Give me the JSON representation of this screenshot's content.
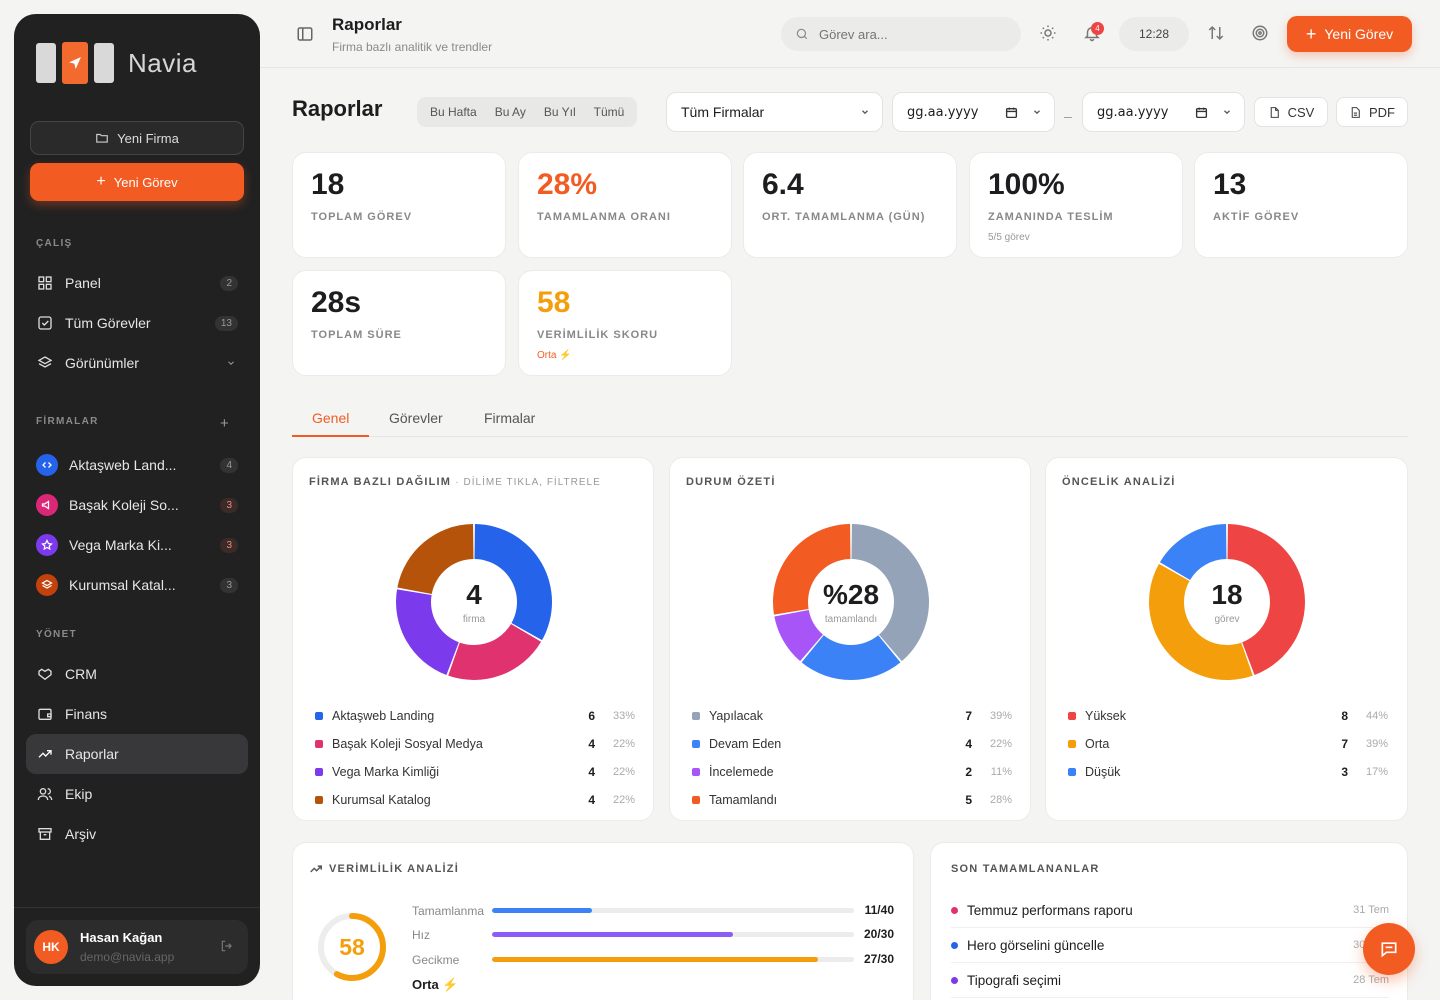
{
  "sidebar": {
    "brand": "Navia",
    "new_firm": "Yeni Firma",
    "new_task": "Yeni Görev",
    "section_work": "ÇALIŞ",
    "section_firms": "FİRMALAR",
    "section_manage": "YÖNET",
    "nav": [
      {
        "label": "Panel",
        "count": "2",
        "icon": "grid-icon"
      },
      {
        "label": "Tüm Görevler",
        "count": "13",
        "icon": "check-square-icon"
      },
      {
        "label": "Görünümler",
        "icon": "layers-icon"
      }
    ],
    "firms": [
      {
        "label": "Aktaşweb Land...",
        "count": "4",
        "color": "#2563eb",
        "icon": "code-icon"
      },
      {
        "label": "Başak Koleji So...",
        "count": "3",
        "color": "#db2777",
        "icon": "megaphone-icon"
      },
      {
        "label": "Vega Marka Ki...",
        "count": "3",
        "color": "#7c3aed",
        "icon": "star-icon"
      },
      {
        "label": "Kurumsal Katal...",
        "count": "3",
        "color": "#c2410c",
        "icon": "layers-icon"
      }
    ],
    "manage": [
      {
        "label": "CRM",
        "icon": "handshake-icon"
      },
      {
        "label": "Finans",
        "icon": "wallet-icon"
      },
      {
        "label": "Raporlar",
        "icon": "trending-up-icon",
        "active": true
      },
      {
        "label": "Ekip",
        "icon": "users-icon"
      },
      {
        "label": "Arşiv",
        "icon": "archive-icon"
      }
    ],
    "user": {
      "initials": "HK",
      "name": "Hasan Kağan",
      "email": "demo@navia.app"
    }
  },
  "topbar": {
    "title": "Raporlar",
    "subtitle": "Firma bazlı analitik ve trendler",
    "search_placeholder": "Görev ara...",
    "notifications": "4",
    "time": "12:28",
    "new_task": "Yeni Görev"
  },
  "filters": {
    "page_title": "Raporlar",
    "periods": [
      "Bu Hafta",
      "Bu Ay",
      "Bu Yıl",
      "Tümü"
    ],
    "firm_select": "Tüm Firmalar",
    "date_from": "gg.aa.yyyy",
    "date_to": "gg.aa.yyyy",
    "csv": "CSV",
    "pdf": "PDF"
  },
  "stats": [
    {
      "value": "18",
      "label": "TOPLAM GÖREV",
      "color": "#1d1d1f"
    },
    {
      "value": "28%",
      "label": "TAMAMLANMA ORANI",
      "color": "#f25c22"
    },
    {
      "value": "6.4",
      "label": "ORT. TAMAMLANMA (GÜN)",
      "color": "#1d1d1f"
    },
    {
      "value": "100%",
      "label": "ZAMANINDA TESLİM",
      "sub": "5/5 görev",
      "color": "#1d1d1f"
    },
    {
      "value": "13",
      "label": "AKTİF GÖREV",
      "color": "#1d1d1f"
    },
    {
      "value": "28s",
      "label": "TOPLAM SÜRE",
      "color": "#1d1d1f"
    },
    {
      "value": "58",
      "label": "VERİMLİLİK SKORU",
      "sub": "Orta ⚡",
      "color": "#f59e0b"
    }
  ],
  "tabs": [
    "Genel",
    "Görevler",
    "Firmalar"
  ],
  "firm_chart": {
    "title": "FİRMA BAZLI DAĞILIM",
    "hint": "· DİLİME TIKLA, FİLTRELE",
    "center_value": "4",
    "center_label": "firma"
  },
  "status_chart": {
    "title": "DURUM ÖZETİ",
    "center_value": "%28",
    "center_label": "tamamlandı"
  },
  "priority_chart": {
    "title": "ÖNCELİK ANALİZİ",
    "center_value": "18",
    "center_label": "görev"
  },
  "chart_data": [
    {
      "type": "pie",
      "title": "FİRMA BAZLI DAĞILIM",
      "categories": [
        "Aktaşweb Landing",
        "Başak Koleji Sosyal Medya",
        "Vega Marka Kimliği",
        "Kurumsal Katalog"
      ],
      "values": [
        6,
        4,
        4,
        4
      ],
      "percents": [
        "33%",
        "22%",
        "22%",
        "22%"
      ],
      "colors": [
        "#2563eb",
        "#e0326e",
        "#7c3aed",
        "#b45309"
      ]
    },
    {
      "type": "pie",
      "title": "DURUM ÖZETİ",
      "categories": [
        "Yapılacak",
        "Devam Eden",
        "İncelemede",
        "Tamamlandı"
      ],
      "values": [
        7,
        4,
        2,
        5
      ],
      "percents": [
        "39%",
        "22%",
        "11%",
        "28%"
      ],
      "colors": [
        "#94a3b8",
        "#3b82f6",
        "#a855f7",
        "#f25c22"
      ]
    },
    {
      "type": "pie",
      "title": "ÖNCELİK ANALİZİ",
      "categories": [
        "Yüksek",
        "Orta",
        "Düşük"
      ],
      "values": [
        8,
        7,
        3
      ],
      "percents": [
        "44%",
        "39%",
        "17%"
      ],
      "colors": [
        "#ef4444",
        "#f59e0b",
        "#3b82f6"
      ]
    }
  ],
  "efficiency": {
    "title": "VERİMLİLİK ANALİZİ",
    "score": "58",
    "score_fraction": 0.58,
    "level": "Orta",
    "bolt": "⚡",
    "bars": [
      {
        "label": "Tamamlanma",
        "value": "11/40",
        "fraction": 0.275,
        "color": "#3b82f6"
      },
      {
        "label": "Hız",
        "value": "20/30",
        "fraction": 0.667,
        "color": "#8b5cf6"
      },
      {
        "label": "Gecikme",
        "value": "27/30",
        "fraction": 0.9,
        "color": "#f59e0b"
      }
    ]
  },
  "recent": {
    "title": "SON TAMAMLANANLAR",
    "items": [
      {
        "label": "Temmuz performans raporu",
        "date": "31 Tem",
        "color": "#e0326e"
      },
      {
        "label": "Hero görselini güncelle",
        "date": "30 Tem",
        "color": "#2563eb"
      },
      {
        "label": "Tipografi seçimi",
        "date": "28 Tem",
        "color": "#7c3aed"
      }
    ]
  }
}
